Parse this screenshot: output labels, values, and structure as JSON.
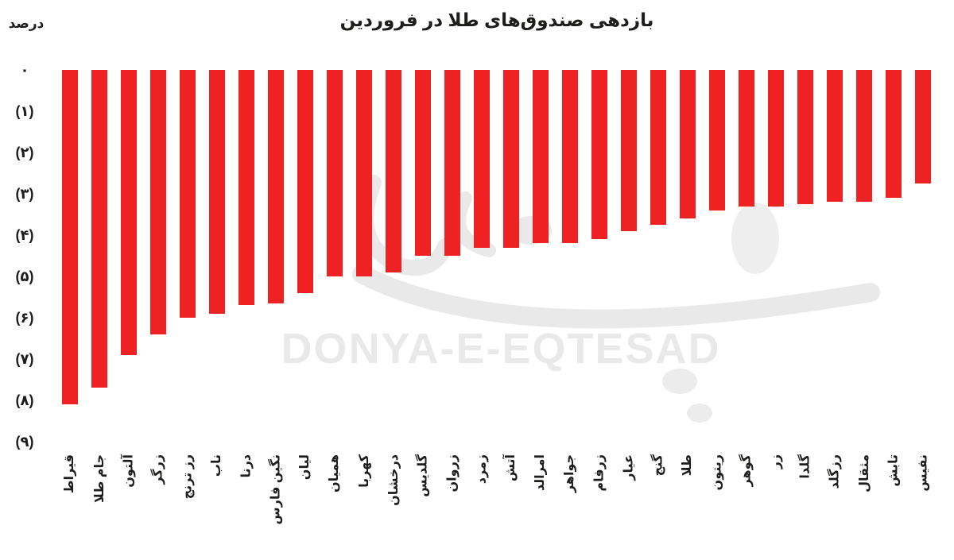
{
  "page": {
    "background": "#ffffff"
  },
  "watermark": {
    "latin": "DONYA-E-EQTESAD",
    "persian_logo": "دنیای اقتصاد"
  },
  "chart_data": {
    "type": "bar",
    "orientation": "vertical-negative",
    "title": "بازدهی صندوق‌های طلا در فروردین",
    "xlabel": "",
    "ylabel": "درصد",
    "ylim": [
      -9,
      0
    ],
    "grid": false,
    "bar_color": "#ee2123",
    "y_tick_labels": [
      "۰",
      "(۱)",
      "(۲)",
      "(۳)",
      "(۴)",
      "(۵)",
      "(۶)",
      "(۷)",
      "(۸)",
      "(۹)"
    ],
    "y_tick_values": [
      0,
      -1,
      -2,
      -3,
      -4,
      -5,
      -6,
      -7,
      -8,
      -9
    ],
    "categories": [
      "قیراط",
      "جام طلا",
      "آلتون",
      "زرگر",
      "رز ترنج",
      "ناب",
      "درنا",
      "نگین فارس",
      "لیان",
      "همیان",
      "کهربا",
      "درخشان",
      "گلدیس",
      "زروان",
      "زمرد",
      "آتش",
      "امرالد",
      "جواهر",
      "زرفام",
      "عیار",
      "گنج",
      "طلا",
      "ریتون",
      "گوهر",
      "زر",
      "گلدا",
      "رزگلد",
      "مثقال",
      "تابش",
      "نفیس"
    ],
    "values": [
      -8.1,
      -7.7,
      -6.9,
      -6.4,
      -6.0,
      -5.9,
      -5.7,
      -5.65,
      -5.4,
      -5.0,
      -5.0,
      -4.9,
      -4.5,
      -4.5,
      -4.3,
      -4.3,
      -4.2,
      -4.2,
      -4.1,
      -3.9,
      -3.75,
      -3.6,
      -3.4,
      -3.3,
      -3.3,
      -3.25,
      -3.2,
      -3.2,
      -3.1,
      -2.75
    ]
  }
}
